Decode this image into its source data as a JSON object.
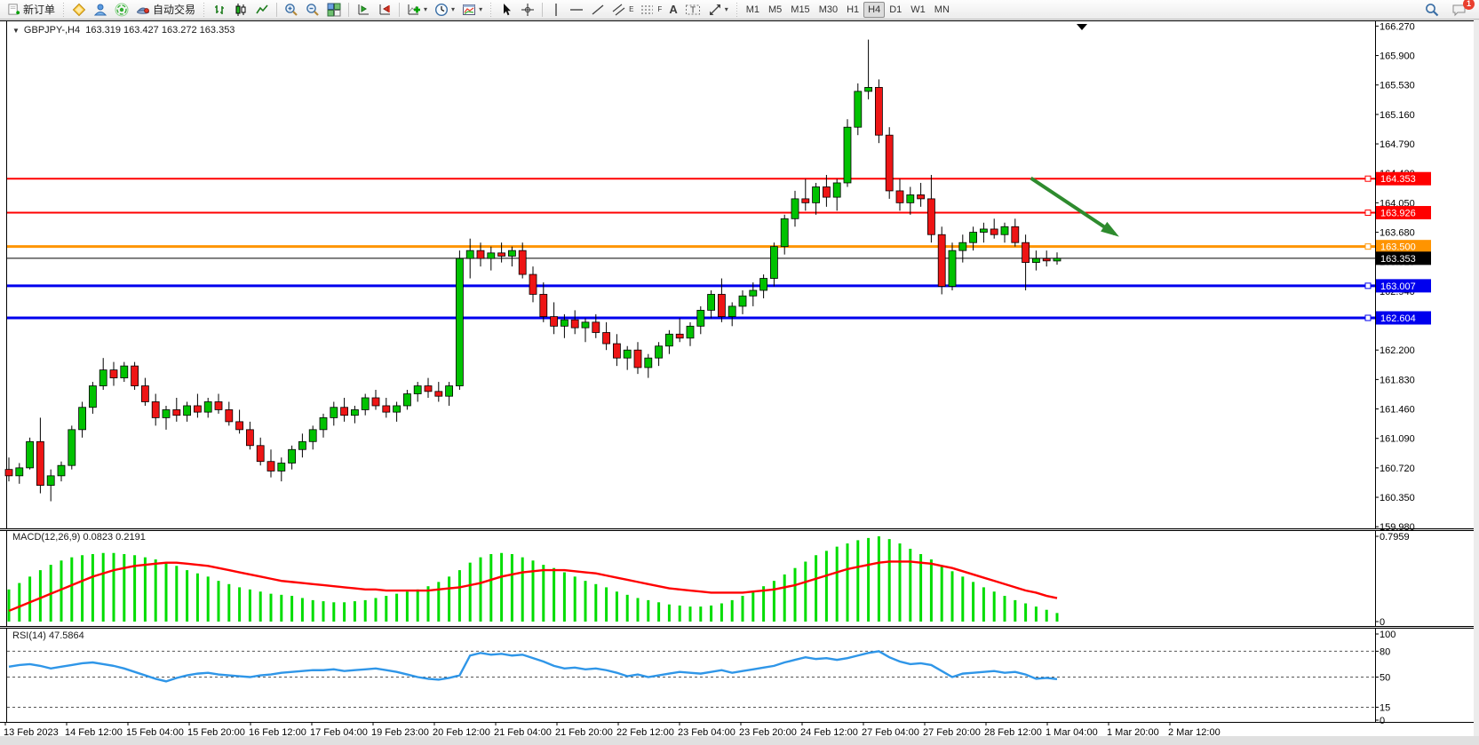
{
  "toolbar": {
    "new_order_label": "新订单",
    "auto_trading_label": "自动交易",
    "timeframes": [
      "M1",
      "M5",
      "M15",
      "M30",
      "H1",
      "H4",
      "D1",
      "W1",
      "MN"
    ],
    "active_timeframe": "H4",
    "channel_letter": "E",
    "fibo_letter": "F",
    "text_tool_label": "A",
    "label_tool_letter": "T",
    "chat_badge": "1"
  },
  "chart_data": [
    {
      "type": "candlestick",
      "title": "GBPJPY-,H4  163.319 163.427 163.272 163.353",
      "symbol": "GBPJPY-",
      "period": "H4",
      "ylim": [
        159.96,
        166.33
      ],
      "y_ticks": [
        166.27,
        165.9,
        165.53,
        165.16,
        164.79,
        164.42,
        164.05,
        163.68,
        163.31,
        162.94,
        162.57,
        162.2,
        161.83,
        161.46,
        161.09,
        160.72,
        160.35,
        159.98
      ],
      "x_labels": [
        "13 Feb 2023",
        "14 Feb 12:00",
        "15 Feb 04:00",
        "15 Feb 20:00",
        "16 Feb 12:00",
        "17 Feb 04:00",
        "19 Feb 23:00",
        "20 Feb 12:00",
        "21 Feb 04:00",
        "21 Feb 20:00",
        "22 Feb 12:00",
        "23 Feb 04:00",
        "23 Feb 20:00",
        "24 Feb 12:00",
        "27 Feb 04:00",
        "27 Feb 20:00",
        "28 Feb 12:00",
        "1 Mar 04:00",
        "1 Mar 20:00",
        "2 Mar 12:00"
      ],
      "up_color": "#00c200",
      "down_color": "#ee1515",
      "hlines": [
        {
          "value": 164.353,
          "color": "#ff0000",
          "label": "164.353",
          "width": 2
        },
        {
          "value": 163.926,
          "color": "#ff0000",
          "label": "163.926",
          "width": 2
        },
        {
          "value": 163.5,
          "color": "#ff9400",
          "label": "163.500",
          "width": 3
        },
        {
          "value": 163.353,
          "color": "#000000",
          "label": "163.353",
          "width": 1
        },
        {
          "value": 163.007,
          "color": "#0000ee",
          "label": "163.007",
          "width": 3
        },
        {
          "value": 162.604,
          "color": "#0000ee",
          "label": "162.604",
          "width": 3
        }
      ],
      "arrow_annotation": {
        "from_index": 97.5,
        "from_price": 164.36,
        "to_index": 105.5,
        "to_price": 163.66,
        "color": "#2e8b2e"
      },
      "ohlc": [
        [
          160.7,
          160.85,
          160.55,
          160.62
        ],
        [
          160.62,
          160.78,
          160.52,
          160.72
        ],
        [
          160.72,
          161.1,
          160.7,
          161.05
        ],
        [
          161.05,
          161.35,
          160.4,
          160.5
        ],
        [
          160.5,
          160.7,
          160.3,
          160.62
        ],
        [
          160.62,
          160.8,
          160.55,
          160.75
        ],
        [
          160.75,
          161.25,
          160.7,
          161.2
        ],
        [
          161.2,
          161.55,
          161.1,
          161.48
        ],
        [
          161.48,
          161.8,
          161.4,
          161.75
        ],
        [
          161.75,
          162.1,
          161.7,
          161.95
        ],
        [
          161.95,
          162.05,
          161.75,
          161.85
        ],
        [
          161.85,
          162.05,
          161.8,
          162.0
        ],
        [
          162.0,
          162.05,
          161.7,
          161.75
        ],
        [
          161.75,
          161.85,
          161.5,
          161.55
        ],
        [
          161.55,
          161.65,
          161.25,
          161.35
        ],
        [
          161.35,
          161.5,
          161.2,
          161.45
        ],
        [
          161.45,
          161.6,
          161.3,
          161.38
        ],
        [
          161.38,
          161.55,
          161.3,
          161.5
        ],
        [
          161.5,
          161.65,
          161.35,
          161.42
        ],
        [
          161.42,
          161.6,
          161.35,
          161.55
        ],
        [
          161.55,
          161.65,
          161.4,
          161.45
        ],
        [
          161.45,
          161.55,
          161.25,
          161.3
        ],
        [
          161.3,
          161.45,
          161.15,
          161.2
        ],
        [
          161.2,
          161.3,
          160.95,
          161.0
        ],
        [
          161.0,
          161.1,
          160.75,
          160.8
        ],
        [
          160.8,
          160.95,
          160.6,
          160.68
        ],
        [
          160.68,
          160.85,
          160.55,
          160.78
        ],
        [
          160.78,
          161.0,
          160.7,
          160.95
        ],
        [
          160.95,
          161.15,
          160.85,
          161.05
        ],
        [
          161.05,
          161.25,
          160.95,
          161.2
        ],
        [
          161.2,
          161.4,
          161.1,
          161.35
        ],
        [
          161.35,
          161.55,
          161.25,
          161.48
        ],
        [
          161.48,
          161.6,
          161.3,
          161.38
        ],
        [
          161.38,
          161.5,
          161.28,
          161.45
        ],
        [
          161.45,
          161.65,
          161.38,
          161.6
        ],
        [
          161.6,
          161.7,
          161.45,
          161.5
        ],
        [
          161.5,
          161.6,
          161.35,
          161.42
        ],
        [
          161.42,
          161.55,
          161.3,
          161.5
        ],
        [
          161.5,
          161.7,
          161.45,
          161.65
        ],
        [
          161.65,
          161.8,
          161.55,
          161.75
        ],
        [
          161.75,
          161.85,
          161.6,
          161.68
        ],
        [
          161.68,
          161.8,
          161.55,
          161.62
        ],
        [
          161.62,
          161.8,
          161.5,
          161.75
        ],
        [
          161.75,
          163.45,
          161.7,
          163.35
        ],
        [
          163.35,
          163.6,
          163.1,
          163.45
        ],
        [
          163.45,
          163.55,
          163.25,
          163.35
        ],
        [
          163.35,
          163.5,
          163.2,
          163.42
        ],
        [
          163.42,
          163.55,
          163.3,
          163.38
        ],
        [
          163.38,
          163.5,
          163.25,
          163.45
        ],
        [
          163.45,
          163.55,
          163.1,
          163.15
        ],
        [
          163.15,
          163.25,
          162.8,
          162.9
        ],
        [
          162.9,
          163.05,
          162.55,
          162.62
        ],
        [
          162.62,
          162.8,
          162.4,
          162.5
        ],
        [
          162.5,
          162.65,
          162.35,
          162.58
        ],
        [
          162.58,
          162.7,
          162.4,
          162.48
        ],
        [
          162.48,
          162.6,
          162.3,
          162.55
        ],
        [
          162.55,
          162.65,
          162.35,
          162.42
        ],
        [
          162.42,
          162.55,
          162.2,
          162.28
        ],
        [
          162.28,
          162.4,
          162.0,
          162.1
        ],
        [
          162.1,
          162.25,
          161.95,
          162.2
        ],
        [
          162.2,
          162.3,
          161.9,
          161.98
        ],
        [
          161.98,
          162.15,
          161.85,
          162.1
        ],
        [
          162.1,
          162.3,
          162.0,
          162.25
        ],
        [
          162.25,
          162.45,
          162.15,
          162.4
        ],
        [
          162.4,
          162.6,
          162.3,
          162.35
        ],
        [
          162.35,
          162.55,
          162.25,
          162.5
        ],
        [
          162.5,
          162.75,
          162.4,
          162.7
        ],
        [
          162.7,
          162.95,
          162.6,
          162.9
        ],
        [
          162.9,
          163.1,
          162.55,
          162.62
        ],
        [
          162.62,
          162.8,
          162.5,
          162.75
        ],
        [
          162.75,
          162.95,
          162.65,
          162.88
        ],
        [
          162.88,
          163.05,
          162.75,
          162.95
        ],
        [
          162.95,
          163.15,
          162.85,
          163.1
        ],
        [
          163.1,
          163.55,
          163.0,
          163.5
        ],
        [
          163.5,
          163.9,
          163.4,
          163.85
        ],
        [
          163.85,
          164.2,
          163.75,
          164.1
        ],
        [
          164.1,
          164.35,
          163.95,
          164.05
        ],
        [
          164.05,
          164.3,
          163.9,
          164.25
        ],
        [
          164.25,
          164.4,
          164.0,
          164.12
        ],
        [
          164.12,
          164.35,
          163.95,
          164.3
        ],
        [
          164.3,
          165.1,
          164.25,
          165.0
        ],
        [
          165.0,
          165.55,
          164.9,
          165.45
        ],
        [
          165.45,
          166.1,
          165.35,
          165.5
        ],
        [
          165.5,
          165.6,
          164.8,
          164.9
        ],
        [
          164.9,
          165.0,
          164.1,
          164.2
        ],
        [
          164.2,
          164.35,
          163.95,
          164.05
        ],
        [
          164.05,
          164.25,
          163.9,
          164.15
        ],
        [
          164.15,
          164.3,
          164.0,
          164.1
        ],
        [
          164.1,
          164.4,
          163.55,
          163.65
        ],
        [
          163.65,
          163.75,
          162.9,
          163.0
        ],
        [
          163.0,
          163.55,
          162.95,
          163.45
        ],
        [
          163.45,
          163.65,
          163.3,
          163.55
        ],
        [
          163.55,
          163.75,
          163.45,
          163.68
        ],
        [
          163.68,
          163.8,
          163.55,
          163.72
        ],
        [
          163.72,
          163.85,
          163.6,
          163.65
        ],
        [
          163.65,
          163.8,
          163.55,
          163.75
        ],
        [
          163.75,
          163.85,
          163.5,
          163.55
        ],
        [
          163.55,
          163.65,
          162.95,
          163.3
        ],
        [
          163.3,
          163.45,
          163.2,
          163.35
        ],
        [
          163.35,
          163.45,
          163.25,
          163.32
        ],
        [
          163.319,
          163.427,
          163.272,
          163.353
        ]
      ]
    },
    {
      "type": "macd",
      "label": "MACD(12,26,9) 0.0823 0.2191",
      "ylim": [
        0,
        0.7959
      ],
      "y_ticks": [
        "0.7959",
        "0"
      ],
      "histogram_color": "#00dd00",
      "signal_color": "#ff0000",
      "histogram": [
        0.3,
        0.36,
        0.42,
        0.48,
        0.53,
        0.57,
        0.6,
        0.62,
        0.63,
        0.64,
        0.64,
        0.63,
        0.62,
        0.6,
        0.58,
        0.55,
        0.52,
        0.48,
        0.45,
        0.42,
        0.38,
        0.35,
        0.32,
        0.3,
        0.28,
        0.26,
        0.25,
        0.24,
        0.22,
        0.2,
        0.19,
        0.18,
        0.18,
        0.19,
        0.2,
        0.22,
        0.24,
        0.26,
        0.28,
        0.3,
        0.33,
        0.37,
        0.42,
        0.48,
        0.55,
        0.6,
        0.63,
        0.64,
        0.63,
        0.6,
        0.57,
        0.53,
        0.5,
        0.46,
        0.42,
        0.38,
        0.35,
        0.32,
        0.28,
        0.25,
        0.22,
        0.2,
        0.18,
        0.16,
        0.15,
        0.14,
        0.14,
        0.15,
        0.17,
        0.2,
        0.24,
        0.28,
        0.33,
        0.38,
        0.44,
        0.5,
        0.56,
        0.62,
        0.66,
        0.7,
        0.73,
        0.76,
        0.78,
        0.796,
        0.77,
        0.73,
        0.68,
        0.63,
        0.58,
        0.52,
        0.47,
        0.42,
        0.37,
        0.32,
        0.28,
        0.24,
        0.2,
        0.17,
        0.14,
        0.11,
        0.08
      ],
      "signal": [
        0.1,
        0.14,
        0.18,
        0.22,
        0.26,
        0.3,
        0.34,
        0.38,
        0.42,
        0.45,
        0.48,
        0.5,
        0.52,
        0.53,
        0.54,
        0.55,
        0.55,
        0.54,
        0.53,
        0.52,
        0.5,
        0.48,
        0.46,
        0.44,
        0.42,
        0.4,
        0.38,
        0.37,
        0.36,
        0.35,
        0.34,
        0.33,
        0.32,
        0.31,
        0.3,
        0.3,
        0.29,
        0.29,
        0.29,
        0.29,
        0.29,
        0.3,
        0.31,
        0.32,
        0.34,
        0.36,
        0.39,
        0.42,
        0.44,
        0.46,
        0.47,
        0.48,
        0.48,
        0.48,
        0.47,
        0.46,
        0.45,
        0.43,
        0.41,
        0.39,
        0.37,
        0.35,
        0.33,
        0.31,
        0.3,
        0.29,
        0.28,
        0.27,
        0.27,
        0.27,
        0.27,
        0.28,
        0.29,
        0.3,
        0.32,
        0.34,
        0.37,
        0.4,
        0.43,
        0.46,
        0.49,
        0.51,
        0.53,
        0.55,
        0.56,
        0.56,
        0.56,
        0.55,
        0.54,
        0.52,
        0.5,
        0.47,
        0.44,
        0.41,
        0.38,
        0.35,
        0.32,
        0.29,
        0.27,
        0.24,
        0.2191
      ]
    },
    {
      "type": "rsi",
      "label": "RSI(14) 47.5864",
      "ylim": [
        0,
        100
      ],
      "y_ticks": [
        100,
        80,
        50,
        15,
        0
      ],
      "levels": [
        80,
        50,
        15
      ],
      "line_color": "#2f96e8",
      "values": [
        62,
        64,
        65,
        63,
        60,
        62,
        64,
        66,
        67,
        65,
        63,
        60,
        56,
        52,
        48,
        45,
        49,
        52,
        54,
        55,
        53,
        52,
        51,
        50,
        52,
        53,
        55,
        56,
        57,
        58,
        58,
        59,
        57,
        58,
        59,
        60,
        58,
        56,
        53,
        50,
        48,
        47,
        49,
        52,
        75,
        78,
        76,
        77,
        75,
        76,
        72,
        68,
        63,
        60,
        61,
        59,
        60,
        58,
        55,
        51,
        53,
        50,
        52,
        54,
        56,
        55,
        54,
        56,
        58,
        55,
        57,
        59,
        61,
        63,
        67,
        70,
        73,
        71,
        72,
        70,
        72,
        75,
        78,
        80,
        73,
        68,
        65,
        66,
        64,
        57,
        50,
        54,
        55,
        56,
        57,
        55,
        56,
        53,
        48,
        49,
        47.59
      ]
    }
  ]
}
